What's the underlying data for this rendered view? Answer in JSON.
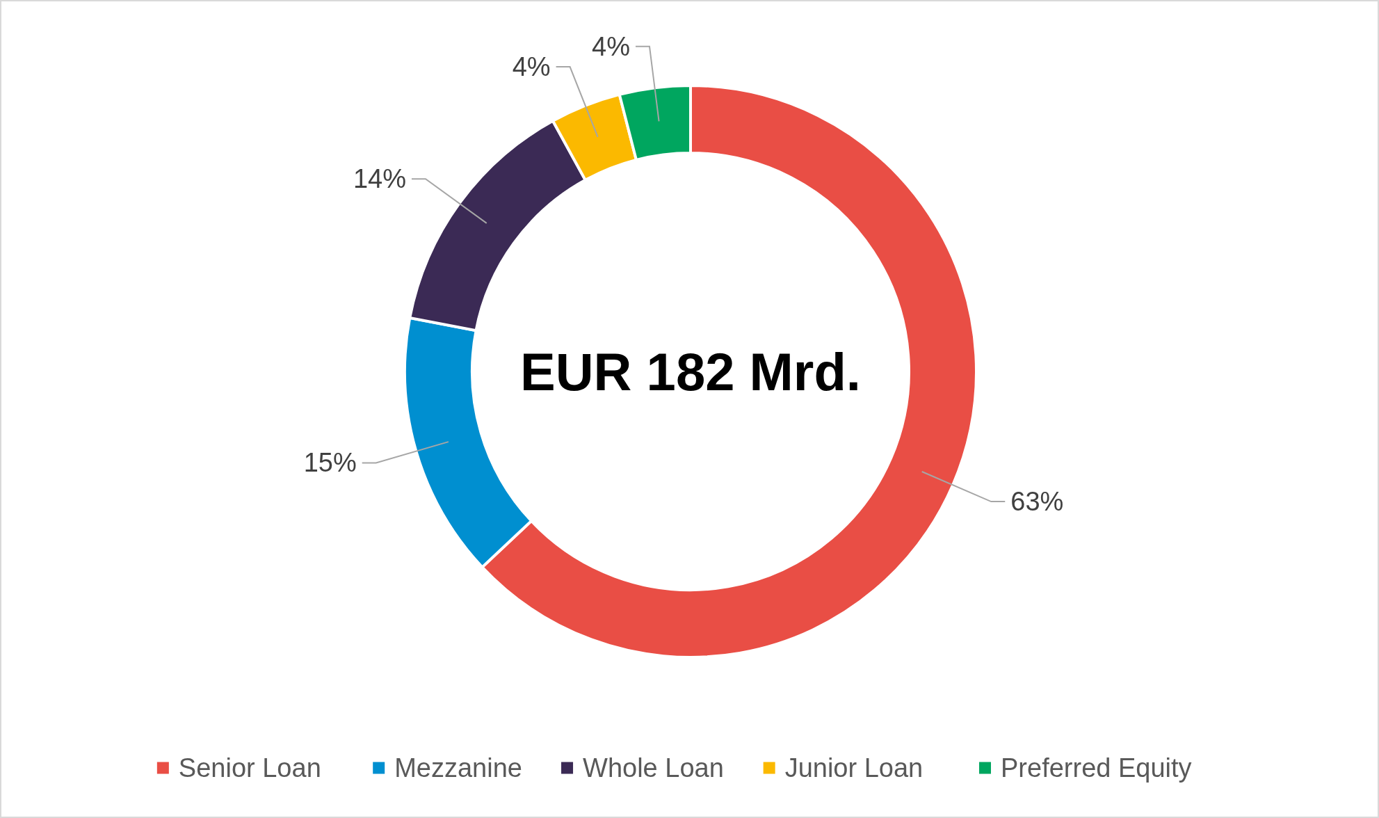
{
  "chart_data": {
    "type": "donut",
    "categories": [
      "Senior Loan",
      "Mezzanine",
      "Whole Loan",
      "Junior Loan",
      "Preferred Equity"
    ],
    "values": [
      63,
      15,
      14,
      4,
      4
    ],
    "colors": [
      "#e94e45",
      "#008fd0",
      "#3b2a55",
      "#fbb900",
      "#00a65f"
    ],
    "value_labels": [
      "63%",
      "15%",
      "14%",
      "4%",
      "4%"
    ],
    "annotations": [
      "EUR 182 Mrd."
    ],
    "legend": "bottom"
  }
}
